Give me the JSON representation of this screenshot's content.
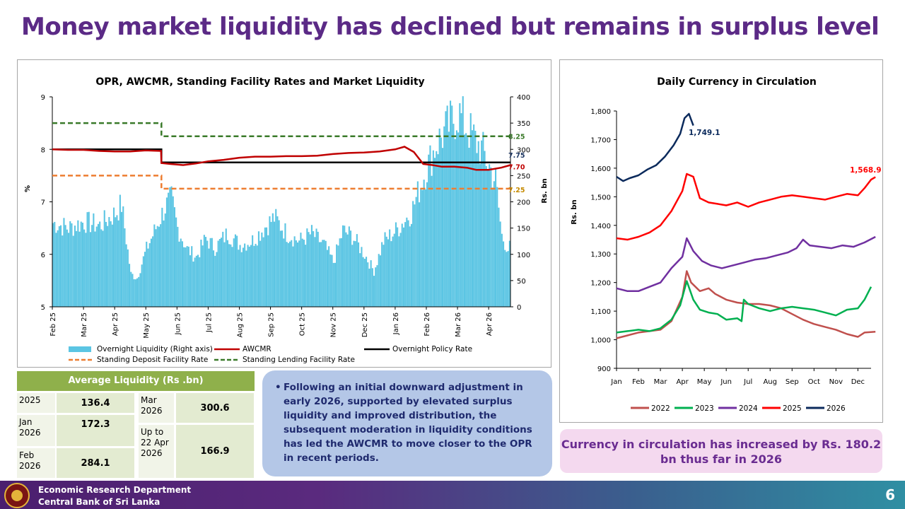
{
  "page": {
    "title": "Money market liquidity has declined but remains in surplus level",
    "footer_line1": "Economic Research Department",
    "footer_line2": "Central Bank of Sri Lanka",
    "page_number": "6"
  },
  "colors": {
    "title": "#5b2a86",
    "liquidity": "#5bc5e3",
    "awcmr": "#c00000",
    "opr": "#000000",
    "sdfr": "#ed7d31",
    "slfr": "#3a7a2a",
    "y2022": "#c0504d",
    "y2023": "#00b050",
    "y2024": "#7030a0",
    "y2025": "#ff0000",
    "y2026": "#0b2a5c"
  },
  "chart_data": [
    {
      "type": "line",
      "title": "OPR, AWCMR, Standing Facility Rates and Market Liquidity",
      "ylabel": "%",
      "y2label": "Rs. bn",
      "ylim": [
        5,
        9
      ],
      "y2lim": [
        0,
        400
      ],
      "yticks": [
        "9",
        "8",
        "7",
        "6",
        "5"
      ],
      "y2ticks": [
        "400",
        "350",
        "300",
        "250",
        "200",
        "150",
        "100",
        "50",
        "0"
      ],
      "xticks": [
        "Feb 25",
        "Mar 25",
        "Apr 25",
        "May 25",
        "Jun 25",
        "Jul 25",
        "Aug 25",
        "Sep 25",
        "Oct 25",
        "Nov 25",
        "Dec 25",
        "Jan 26",
        "Feb 26",
        "Mar 26",
        "Apr 26"
      ],
      "legend": [
        "Overnight Liquidity (Right axis)",
        "AWCMR",
        "Overnight Policy Rate",
        "Standing Deposit Facility Rate",
        "Standing Lending Facility Rate"
      ],
      "end_labels": [
        "8.25",
        "7.75",
        "7.70",
        "7.25"
      ],
      "series": [
        {
          "name": "Standing Lending Facility Rate",
          "points": [
            [
              0,
              8.5
            ],
            [
              3.5,
              8.5
            ],
            [
              3.5,
              8.25
            ],
            [
              14.7,
              8.25
            ]
          ]
        },
        {
          "name": "Overnight Policy Rate",
          "points": [
            [
              0,
              8.0
            ],
            [
              3.5,
              8.0
            ],
            [
              3.5,
              7.75
            ],
            [
              14.7,
              7.75
            ]
          ]
        },
        {
          "name": "Standard Deposit Facility Rate",
          "points": [
            [
              0,
              7.5
            ],
            [
              3.5,
              7.5
            ],
            [
              3.5,
              7.25
            ],
            [
              14.7,
              7.25
            ]
          ]
        },
        {
          "name": "AWCMR",
          "points": [
            [
              0,
              8.0
            ],
            [
              0.5,
              7.99
            ],
            [
              1.0,
              7.99
            ],
            [
              1.5,
              7.97
            ],
            [
              2.0,
              7.96
            ],
            [
              2.5,
              7.96
            ],
            [
              3.0,
              7.98
            ],
            [
              3.49,
              7.97
            ],
            [
              3.5,
              7.74
            ],
            [
              3.8,
              7.72
            ],
            [
              4.2,
              7.7
            ],
            [
              4.6,
              7.73
            ],
            [
              5.0,
              7.77
            ],
            [
              5.5,
              7.8
            ],
            [
              6.0,
              7.84
            ],
            [
              6.5,
              7.86
            ],
            [
              7.0,
              7.86
            ],
            [
              7.5,
              7.87
            ],
            [
              8.0,
              7.87
            ],
            [
              8.5,
              7.88
            ],
            [
              9.0,
              7.91
            ],
            [
              9.5,
              7.93
            ],
            [
              10.0,
              7.94
            ],
            [
              10.5,
              7.96
            ],
            [
              11.0,
              8.0
            ],
            [
              11.3,
              8.05
            ],
            [
              11.6,
              7.95
            ],
            [
              11.9,
              7.72
            ],
            [
              12.2,
              7.7
            ],
            [
              12.5,
              7.67
            ],
            [
              12.9,
              7.67
            ],
            [
              13.3,
              7.65
            ],
            [
              13.6,
              7.61
            ],
            [
              14.0,
              7.61
            ],
            [
              14.4,
              7.65
            ],
            [
              14.7,
              7.7
            ]
          ]
        },
        {
          "name": "Overnight Liquidity (Right axis)",
          "axis": "right",
          "points": [
            [
              0,
              160
            ],
            [
              0.5,
              150
            ],
            [
              1.0,
              162
            ],
            [
              1.5,
              155
            ],
            [
              2.0,
              178
            ],
            [
              2.2,
              195
            ],
            [
              2.5,
              62
            ],
            [
              2.7,
              55
            ],
            [
              3.0,
              110
            ],
            [
              3.3,
              150
            ],
            [
              3.6,
              190
            ],
            [
              3.8,
              205
            ],
            [
              4.0,
              150
            ],
            [
              4.3,
              110
            ],
            [
              4.6,
              95
            ],
            [
              4.9,
              130
            ],
            [
              5.2,
              112
            ],
            [
              5.6,
              140
            ],
            [
              6.0,
              118
            ],
            [
              6.4,
              126
            ],
            [
              6.8,
              152
            ],
            [
              7.1,
              170
            ],
            [
              7.5,
              140
            ],
            [
              7.9,
              125
            ],
            [
              8.3,
              140
            ],
            [
              8.7,
              118
            ],
            [
              9.0,
              85
            ],
            [
              9.3,
              145
            ],
            [
              9.6,
              135
            ],
            [
              10.0,
              100
            ],
            [
              10.3,
              68
            ],
            [
              10.6,
              125
            ],
            [
              11.0,
              145
            ],
            [
              11.5,
              180
            ],
            [
              11.9,
              250
            ],
            [
              12.3,
              310
            ],
            [
              12.7,
              345
            ],
            [
              13.0,
              370
            ],
            [
              13.4,
              330
            ],
            [
              13.8,
              295
            ],
            [
              14.2,
              240
            ],
            [
              14.4,
              135
            ],
            [
              14.6,
              110
            ],
            [
              14.7,
              115
            ]
          ]
        }
      ]
    },
    {
      "type": "line",
      "title": "Daily Currency in Circulation",
      "ylabel": "Rs. bn",
      "ylim": [
        900,
        1800
      ],
      "yticks": [
        "1,800",
        "1,700",
        "1,600",
        "1,500",
        "1,400",
        "1,300",
        "1,200",
        "1,100",
        "1,000",
        "900"
      ],
      "xticks": [
        "Jan",
        "Feb",
        "Mar",
        "Apr",
        "May",
        "Jun",
        "Jul",
        "Aug",
        "Sep",
        "Oct",
        "Nov",
        "Dec"
      ],
      "legend": [
        "2022",
        "2023",
        "2024",
        "2025",
        "2026"
      ],
      "end_labels": [
        "1,749.1",
        "1,568.9"
      ],
      "series": [
        {
          "name": "2022",
          "points": [
            [
              0,
              1005
            ],
            [
              0.5,
              1015
            ],
            [
              1.0,
              1025
            ],
            [
              1.5,
              1030
            ],
            [
              2.0,
              1035
            ],
            [
              2.5,
              1065
            ],
            [
              3.0,
              1150
            ],
            [
              3.2,
              1240
            ],
            [
              3.4,
              1200
            ],
            [
              3.8,
              1170
            ],
            [
              4.2,
              1180
            ],
            [
              4.5,
              1160
            ],
            [
              5.0,
              1140
            ],
            [
              5.5,
              1130
            ],
            [
              6.0,
              1125
            ],
            [
              6.5,
              1125
            ],
            [
              7.0,
              1120
            ],
            [
              7.5,
              1110
            ],
            [
              8.0,
              1090
            ],
            [
              8.5,
              1070
            ],
            [
              9.0,
              1055
            ],
            [
              9.5,
              1045
            ],
            [
              10.0,
              1035
            ],
            [
              10.5,
              1020
            ],
            [
              11.0,
              1010
            ],
            [
              11.3,
              1025
            ],
            [
              11.8,
              1028
            ]
          ]
        },
        {
          "name": "2023",
          "points": [
            [
              0,
              1025
            ],
            [
              0.5,
              1030
            ],
            [
              1.0,
              1035
            ],
            [
              1.5,
              1030
            ],
            [
              2.0,
              1040
            ],
            [
              2.5,
              1070
            ],
            [
              2.9,
              1120
            ],
            [
              3.2,
              1205
            ],
            [
              3.5,
              1140
            ],
            [
              3.8,
              1105
            ],
            [
              4.2,
              1095
            ],
            [
              4.6,
              1090
            ],
            [
              5.0,
              1070
            ],
            [
              5.5,
              1075
            ],
            [
              5.7,
              1065
            ],
            [
              5.8,
              1140
            ],
            [
              6.0,
              1125
            ],
            [
              6.5,
              1110
            ],
            [
              7.0,
              1100
            ],
            [
              7.5,
              1110
            ],
            [
              8.0,
              1115
            ],
            [
              8.5,
              1110
            ],
            [
              9.0,
              1105
            ],
            [
              9.5,
              1095
            ],
            [
              10.0,
              1085
            ],
            [
              10.5,
              1105
            ],
            [
              11.0,
              1110
            ],
            [
              11.3,
              1140
            ],
            [
              11.6,
              1185
            ]
          ]
        },
        {
          "name": "2024",
          "points": [
            [
              0,
              1180
            ],
            [
              0.5,
              1170
            ],
            [
              1.0,
              1170
            ],
            [
              1.5,
              1185
            ],
            [
              2.0,
              1200
            ],
            [
              2.5,
              1250
            ],
            [
              3.0,
              1290
            ],
            [
              3.2,
              1355
            ],
            [
              3.5,
              1310
            ],
            [
              3.9,
              1275
            ],
            [
              4.3,
              1260
            ],
            [
              4.8,
              1250
            ],
            [
              5.3,
              1260
            ],
            [
              5.8,
              1270
            ],
            [
              6.3,
              1280
            ],
            [
              6.8,
              1285
            ],
            [
              7.3,
              1295
            ],
            [
              7.8,
              1305
            ],
            [
              8.2,
              1320
            ],
            [
              8.5,
              1350
            ],
            [
              8.8,
              1330
            ],
            [
              9.3,
              1325
            ],
            [
              9.8,
              1320
            ],
            [
              10.3,
              1330
            ],
            [
              10.8,
              1325
            ],
            [
              11.3,
              1340
            ],
            [
              11.8,
              1360
            ]
          ]
        },
        {
          "name": "2025",
          "points": [
            [
              0,
              1355
            ],
            [
              0.5,
              1350
            ],
            [
              1.0,
              1360
            ],
            [
              1.5,
              1375
            ],
            [
              2.0,
              1400
            ],
            [
              2.5,
              1450
            ],
            [
              3.0,
              1520
            ],
            [
              3.2,
              1580
            ],
            [
              3.5,
              1570
            ],
            [
              3.8,
              1495
            ],
            [
              4.2,
              1480
            ],
            [
              4.6,
              1475
            ],
            [
              5.0,
              1470
            ],
            [
              5.5,
              1480
            ],
            [
              6.0,
              1465
            ],
            [
              6.5,
              1480
            ],
            [
              7.0,
              1490
            ],
            [
              7.5,
              1500
            ],
            [
              8.0,
              1505
            ],
            [
              8.5,
              1500
            ],
            [
              9.0,
              1495
            ],
            [
              9.5,
              1490
            ],
            [
              10.0,
              1500
            ],
            [
              10.5,
              1510
            ],
            [
              11.0,
              1505
            ],
            [
              11.3,
              1530
            ],
            [
              11.6,
              1560
            ],
            [
              11.8,
              1569
            ]
          ]
        },
        {
          "name": "2026",
          "points": [
            [
              0,
              1570
            ],
            [
              0.3,
              1555
            ],
            [
              0.6,
              1565
            ],
            [
              1.0,
              1575
            ],
            [
              1.4,
              1595
            ],
            [
              1.8,
              1610
            ],
            [
              2.2,
              1640
            ],
            [
              2.6,
              1680
            ],
            [
              2.9,
              1720
            ],
            [
              3.1,
              1775
            ],
            [
              3.3,
              1790
            ],
            [
              3.5,
              1749
            ]
          ]
        }
      ]
    }
  ],
  "avg_liquidity": {
    "header": "Average Liquidity (Rs .bn)",
    "rows": [
      {
        "label": "2025",
        "value": "136.4"
      },
      {
        "label": "Jan 2026",
        "value": "172.3"
      },
      {
        "label": "Feb 2026",
        "value": "284.1"
      },
      {
        "label": "Mar 2026",
        "value": "300.6"
      },
      {
        "label": "Up to 22 Apr 2026",
        "value": "166.9"
      }
    ]
  },
  "bubble_text": "Following an initial downward adjustment in early 2026, supported by elevated surplus liquidity and improved distribution, the subsequent moderation in liquidity conditions has led the AWCMR to move closer to the OPR in recent periods.",
  "currency_note": "Currency in circulation has increased by Rs. 180.2 bn thus far in 2026"
}
